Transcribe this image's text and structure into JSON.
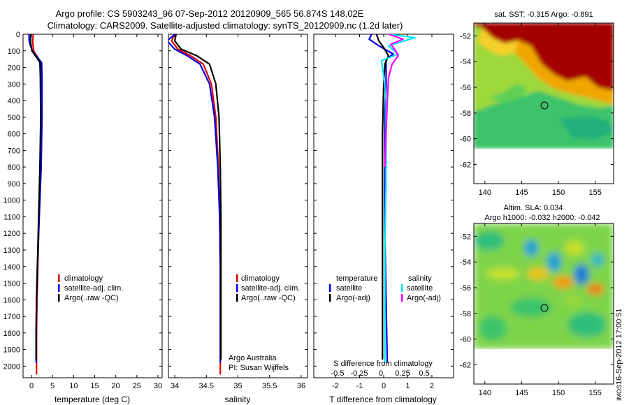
{
  "header": {
    "title_line1": "Argo profile: CS 5903243_96 07-Sep-2012 20120909_565 56.874S 148.02E",
    "title_line2": "Climatology: CARS2009. Satellite-adjusted climatology: synTS_20120909.nc (1.2d later)"
  },
  "colors": {
    "climatology": "#e00000",
    "satellite_adj": "#0000e0",
    "argo": "#000000",
    "salinity_satellite": "#00e5ee",
    "salinity_argo": "#ff00ff"
  },
  "chart_data": [
    {
      "type": "line",
      "panel": "temperature",
      "xlabel": "temperature (deg C)",
      "ylabel": "",
      "xlim": [
        -2,
        31
      ],
      "ylim": [
        2070,
        0
      ],
      "xticks": [
        "0",
        "5",
        "10",
        "15",
        "20",
        "25",
        "30"
      ],
      "yticks": [
        "0",
        "100",
        "200",
        "300",
        "400",
        "500",
        "600",
        "700",
        "800",
        "900",
        "1000",
        "1100",
        "1200",
        "1300",
        "1400",
        "1500",
        "1600",
        "1700",
        "1800",
        "1900",
        "2000"
      ],
      "legend": {
        "position": "center-left",
        "entries": [
          "climatology",
          "satellite-adj. clim.",
          "Argo(..raw -QC)"
        ]
      },
      "series": [
        {
          "name": "climatology",
          "color": "#e00000",
          "x": [
            0.4,
            0.3,
            0.5,
            1.5,
            2.2,
            2.2,
            2.2,
            2.1,
            1.9,
            1.7,
            1.5,
            1.3,
            1.2,
            1.2
          ],
          "y": [
            0,
            50,
            100,
            140,
            170,
            250,
            500,
            800,
            1000,
            1200,
            1400,
            1600,
            1800,
            2050
          ]
        },
        {
          "name": "satellite-adj. clim.",
          "color": "#0000e0",
          "x": [
            -0.6,
            -0.5,
            0.2,
            1.4,
            2.4,
            2.5,
            2.5,
            2.3,
            2.0,
            1.7,
            1.4,
            1.2,
            1.1,
            1.1
          ],
          "y": [
            0,
            50,
            100,
            140,
            170,
            250,
            500,
            800,
            1000,
            1200,
            1400,
            1600,
            1800,
            1980
          ]
        },
        {
          "name": "Argo(..raw -QC)",
          "color": "#000000",
          "x": [
            -0.2,
            -0.2,
            0.1,
            1.2,
            2.0,
            2.1,
            2.2,
            2.0,
            1.8,
            1.6,
            1.4,
            1.2,
            1.1,
            1.1
          ],
          "y": [
            0,
            50,
            100,
            140,
            170,
            250,
            500,
            800,
            1000,
            1200,
            1400,
            1600,
            1800,
            1960
          ]
        }
      ]
    },
    {
      "type": "line",
      "panel": "salinity",
      "xlabel": "salinity",
      "xlim": [
        33.9,
        36.1
      ],
      "ylim": [
        2070,
        0
      ],
      "xticks": [
        "34",
        "34.5",
        "35",
        "35.5",
        "36"
      ],
      "legend": {
        "position": "center-right",
        "entries": [
          "climatology",
          "satellite-adj. clim.",
          "Argo(..raw -QC)"
        ]
      },
      "annotation_lines": [
        "Argo Australia",
        "PI: Susan Wijffels"
      ],
      "series": [
        {
          "name": "climatology",
          "color": "#e00000",
          "x": [
            34.0,
            33.95,
            34.05,
            34.25,
            34.45,
            34.58,
            34.65,
            34.69,
            34.71,
            34.72,
            34.72,
            34.72
          ],
          "y": [
            0,
            40,
            90,
            130,
            180,
            300,
            500,
            800,
            1100,
            1400,
            1700,
            2050
          ]
        },
        {
          "name": "satellite-adj. clim.",
          "color": "#0000e0",
          "x": [
            34.0,
            33.88,
            34.0,
            34.2,
            34.4,
            34.55,
            34.63,
            34.68,
            34.71,
            34.72,
            34.72,
            34.72
          ],
          "y": [
            0,
            40,
            90,
            130,
            180,
            300,
            500,
            800,
            1100,
            1400,
            1700,
            1980
          ]
        },
        {
          "name": "Argo(..raw -QC)",
          "color": "#000000",
          "x": [
            34.02,
            34.0,
            34.1,
            34.35,
            34.55,
            34.65,
            34.7,
            34.72,
            34.73,
            34.73,
            34.73
          ],
          "y": [
            0,
            40,
            90,
            130,
            180,
            300,
            500,
            800,
            1100,
            1400,
            1960
          ]
        }
      ]
    },
    {
      "type": "line",
      "panel": "difference",
      "xlabel": "T difference from climatology",
      "xlabel_top": "S difference from climatology",
      "xlim": [
        -2.9,
        2.9
      ],
      "ylim": [
        2070,
        0
      ],
      "xticks": [
        "-2",
        "-1",
        "0",
        "1",
        "2"
      ],
      "xticks_top": [
        "-0.5",
        "-0.25",
        "0",
        "0.25",
        "0.5"
      ],
      "legend": {
        "temperature_title": "temperature",
        "salinity_title": "salinity",
        "temperature_entries": [
          "satellite",
          "Argo(-adj)"
        ],
        "salinity_entries": [
          "satellite",
          "Argo(-adj)"
        ]
      },
      "series": [
        {
          "name": "T satellite",
          "color": "#0000e0",
          "x": [
            -0.5,
            -0.6,
            -0.2,
            0.4,
            0.1,
            0.1,
            0.1,
            0.05,
            0.05,
            0.05,
            0.1,
            0.15
          ],
          "y": [
            0,
            30,
            70,
            120,
            150,
            200,
            300,
            500,
            800,
            1200,
            1600,
            1980
          ]
        },
        {
          "name": "T Argo(-adj)",
          "color": "#000000",
          "x": [
            -0.3,
            -0.2,
            0.0,
            0.2,
            0.05,
            0.0,
            -0.05,
            -0.05,
            -0.05,
            -0.05,
            -0.05
          ],
          "y": [
            0,
            40,
            80,
            130,
            180,
            300,
            600,
            900,
            1300,
            1700,
            1960
          ]
        },
        {
          "name": "S satellite",
          "color": "#00e5ee",
          "x": [
            0.2,
            1.3,
            0.2,
            0.6,
            -0.1,
            0.0,
            0.1,
            0.1,
            0.1,
            0.05,
            0.05
          ],
          "y": [
            0,
            20,
            70,
            120,
            160,
            250,
            400,
            600,
            900,
            1300,
            1980
          ]
        },
        {
          "name": "S Argo(-adj)",
          "color": "#ff00ff",
          "x": [
            0.2,
            0.8,
            0.3,
            0.5,
            0.6,
            0.35,
            0.2,
            0.15,
            0.1,
            0.05
          ],
          "y": [
            0,
            30,
            60,
            100,
            130,
            180,
            260,
            400,
            600,
            800
          ]
        }
      ]
    },
    {
      "type": "heatmap",
      "panel": "sst_map",
      "title": "sat. SST: -0.315 Argo: -0.891",
      "xlim": [
        138.5,
        157.5
      ],
      "ylim": [
        -63.5,
        -51
      ],
      "xticks": [
        "140",
        "145",
        "150",
        "155"
      ],
      "yticks": [
        "-52",
        "-54",
        "-56",
        "-58",
        "-60",
        "-62"
      ],
      "argo_position": {
        "lon": 148.0,
        "lat": -56.87
      },
      "data_extent_lat": [
        -60,
        -51
      ]
    },
    {
      "type": "heatmap",
      "panel": "sla_map",
      "title_line1": "Altim. SLA: 0.034",
      "title_line2": "Argo h1000: -0.032 h2000: -0.042",
      "xlim": [
        138.5,
        157.5
      ],
      "ylim": [
        -63.5,
        -51
      ],
      "xticks": [
        "140",
        "145",
        "150",
        "155"
      ],
      "yticks": [
        "-52",
        "-54",
        "-56",
        "-58",
        "-60",
        "-62"
      ],
      "argo_position": {
        "lon": 148.0,
        "lat": -56.87
      },
      "data_extent_lat": [
        -60,
        -51
      ]
    }
  ],
  "footer": {
    "timestamp": "16-Sep-2012 17:00:51",
    "logo_text": "IMOS"
  }
}
